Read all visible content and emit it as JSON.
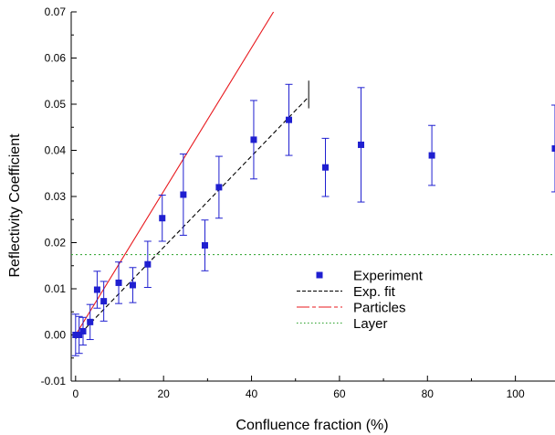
{
  "chart_data": {
    "type": "scatter",
    "xlabel": "Confluence fraction (%)",
    "ylabel": "Reflectivity Coefficient",
    "xlim": [
      -1,
      109
    ],
    "ylim": [
      -0.01,
      0.07
    ],
    "grid": false,
    "legend_position": "center-right",
    "x_ticks": [
      0,
      20,
      40,
      60,
      80,
      100
    ],
    "x_tick_labels": [
      "0",
      "20",
      "40",
      "60",
      "80",
      "100"
    ],
    "y_ticks": [
      -0.01,
      0.0,
      0.01,
      0.02,
      0.03,
      0.04,
      0.05,
      0.06,
      0.07
    ],
    "y_tick_labels": [
      "-0.01",
      "0.00",
      "0.01",
      "0.02",
      "0.03",
      "0.04",
      "0.05",
      "0.06",
      "0.07"
    ],
    "series": [
      {
        "name": "Experiment",
        "kind": "points-with-error-bars",
        "color": "#1f1fd0",
        "points": [
          {
            "x": 0.0,
            "y": 0.0,
            "err": 0.0045
          },
          {
            "x": 0.8,
            "y": 0.0,
            "err": 0.004
          },
          {
            "x": 1.7,
            "y": 0.0008,
            "err": 0.003
          },
          {
            "x": 3.3,
            "y": 0.0028,
            "err": 0.0038
          },
          {
            "x": 4.9,
            "y": 0.0098,
            "err": 0.004
          },
          {
            "x": 6.4,
            "y": 0.0073,
            "err": 0.0043
          },
          {
            "x": 9.8,
            "y": 0.0113,
            "err": 0.0045
          },
          {
            "x": 13.0,
            "y": 0.0108,
            "err": 0.0038
          },
          {
            "x": 16.4,
            "y": 0.0153,
            "err": 0.005
          },
          {
            "x": 19.7,
            "y": 0.0253,
            "err": 0.005
          },
          {
            "x": 24.5,
            "y": 0.0304,
            "err": 0.0088
          },
          {
            "x": 29.4,
            "y": 0.0194,
            "err": 0.0055
          },
          {
            "x": 32.6,
            "y": 0.032,
            "err": 0.0067
          },
          {
            "x": 40.5,
            "y": 0.0423,
            "err": 0.0085
          },
          {
            "x": 48.5,
            "y": 0.0466,
            "err": 0.0077
          },
          {
            "x": 56.8,
            "y": 0.0363,
            "err": 0.0063
          },
          {
            "x": 64.9,
            "y": 0.0412,
            "err": 0.0124
          },
          {
            "x": 81.0,
            "y": 0.0389,
            "err": 0.0065
          },
          {
            "x": 109.0,
            "y": 0.0404,
            "err": 0.0094
          }
        ]
      },
      {
        "name": "Exp. fit",
        "kind": "line",
        "style": "dashed",
        "color": "#000000",
        "x": [
          0,
          53
        ],
        "y": [
          -0.0008,
          0.0516
        ]
      },
      {
        "name": "Particles",
        "kind": "line",
        "style": "solid",
        "color": "#e8191e",
        "x": [
          0,
          45
        ],
        "y": [
          0.0,
          0.07
        ]
      },
      {
        "name": "Layer",
        "kind": "line",
        "style": "dotted",
        "color": "#28a028",
        "x": [
          -1,
          109
        ],
        "y": [
          0.0174,
          0.0174
        ]
      }
    ],
    "legend": {
      "items": [
        {
          "label": "Experiment"
        },
        {
          "label": "Exp. fit"
        },
        {
          "label": "Particles"
        },
        {
          "label": "Layer"
        }
      ]
    }
  }
}
